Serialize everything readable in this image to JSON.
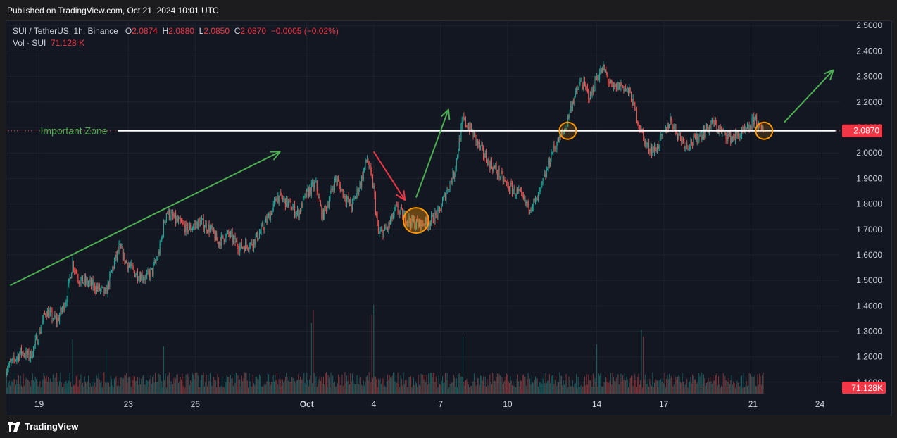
{
  "header": {
    "published": "Published on TradingView.com, Oct 21, 2024 10:01 UTC"
  },
  "legend": {
    "symbol": "SUI / TetherUS, 1h, Binance",
    "o_label": "O",
    "o_value": "2.0874",
    "h_label": "H",
    "h_value": "2.0880",
    "l_label": "L",
    "l_value": "2.0850",
    "c_label": "C",
    "c_value": "2.0870",
    "change": "−0.0005 (−0.02%)",
    "vol_label": "Vol · SUI",
    "vol_value": "71.128 K"
  },
  "footer": {
    "brand": "TradingView",
    "logo_icon": "tradingview-logo-icon"
  },
  "colors": {
    "background": "#131722",
    "up": "#26a69a",
    "down": "#ef5350",
    "annotation_green": "#4caf50",
    "annotation_red": "#f23645",
    "circle": "#ff9800",
    "price_tag": "#f23645"
  },
  "chart_data": {
    "type": "candlestick",
    "title": "",
    "ylim": [
      1.05,
      2.52
    ],
    "y_ticks": [
      "2.5000",
      "2.4000",
      "2.3000",
      "2.2000",
      "2.1000",
      "2.0000",
      "1.9000",
      "1.8000",
      "1.7000",
      "1.6000",
      "1.5000",
      "1.4000",
      "1.3000",
      "1.2000",
      "1.1000"
    ],
    "y_tick_values": [
      2.5,
      2.4,
      2.3,
      2.2,
      2.1,
      2.0,
      1.9,
      1.8,
      1.7,
      1.6,
      1.5,
      1.4,
      1.3,
      1.2,
      1.1
    ],
    "x_ticks": [
      {
        "label": "19",
        "day": 0
      },
      {
        "label": "23",
        "day": 4
      },
      {
        "label": "26",
        "day": 7
      },
      {
        "label": "Oct",
        "day": 12,
        "bold": true
      },
      {
        "label": "4",
        "day": 15
      },
      {
        "label": "7",
        "day": 18
      },
      {
        "label": "10",
        "day": 21
      },
      {
        "label": "14",
        "day": 25
      },
      {
        "label": "17",
        "day": 28
      },
      {
        "label": "21",
        "day": 32
      },
      {
        "label": "24",
        "day": 35
      }
    ],
    "x_range_days": [
      -1.5,
      35.9
    ],
    "last_price": {
      "value": 2.087,
      "label": "2.0870"
    },
    "last_volume": {
      "label": "71.128K"
    },
    "price_path": [
      [
        -1.5,
        1.15
      ],
      [
        -1.2,
        1.18
      ],
      [
        -0.8,
        1.22
      ],
      [
        -0.4,
        1.2
      ],
      [
        0.0,
        1.29
      ],
      [
        0.3,
        1.38
      ],
      [
        0.8,
        1.34
      ],
      [
        1.2,
        1.42
      ],
      [
        1.5,
        1.57
      ],
      [
        1.8,
        1.5
      ],
      [
        2.2,
        1.49
      ],
      [
        2.6,
        1.47
      ],
      [
        3.0,
        1.45
      ],
      [
        3.3,
        1.55
      ],
      [
        3.6,
        1.63
      ],
      [
        3.9,
        1.57
      ],
      [
        4.3,
        1.53
      ],
      [
        4.8,
        1.51
      ],
      [
        5.1,
        1.54
      ],
      [
        5.4,
        1.62
      ],
      [
        5.7,
        1.77
      ],
      [
        6.2,
        1.73
      ],
      [
        6.7,
        1.7
      ],
      [
        7.2,
        1.73
      ],
      [
        7.7,
        1.7
      ],
      [
        8.0,
        1.65
      ],
      [
        8.5,
        1.68
      ],
      [
        9.0,
        1.63
      ],
      [
        9.6,
        1.65
      ],
      [
        10.0,
        1.7
      ],
      [
        10.3,
        1.75
      ],
      [
        10.7,
        1.83
      ],
      [
        11.2,
        1.8
      ],
      [
        11.6,
        1.76
      ],
      [
        12.0,
        1.84
      ],
      [
        12.4,
        1.88
      ],
      [
        12.7,
        1.75
      ],
      [
        13.0,
        1.82
      ],
      [
        13.3,
        1.9
      ],
      [
        13.7,
        1.83
      ],
      [
        14.0,
        1.79
      ],
      [
        14.4,
        1.88
      ],
      [
        14.7,
        1.98
      ],
      [
        15.0,
        1.86
      ],
      [
        15.2,
        1.68
      ],
      [
        15.6,
        1.7
      ],
      [
        16.0,
        1.78
      ],
      [
        16.5,
        1.74
      ],
      [
        17.0,
        1.72
      ],
      [
        17.5,
        1.73
      ],
      [
        17.9,
        1.76
      ],
      [
        18.3,
        1.86
      ],
      [
        18.6,
        1.92
      ],
      [
        19.0,
        2.13
      ],
      [
        19.3,
        2.1
      ],
      [
        19.7,
        2.03
      ],
      [
        20.1,
        1.97
      ],
      [
        20.6,
        1.92
      ],
      [
        21.0,
        1.87
      ],
      [
        21.5,
        1.84
      ],
      [
        21.9,
        1.79
      ],
      [
        22.3,
        1.81
      ],
      [
        22.7,
        1.91
      ],
      [
        23.0,
        2.01
      ],
      [
        23.3,
        2.05
      ],
      [
        23.6,
        2.1
      ],
      [
        23.9,
        2.2
      ],
      [
        24.3,
        2.28
      ],
      [
        24.7,
        2.22
      ],
      [
        25.0,
        2.3
      ],
      [
        25.3,
        2.33
      ],
      [
        25.7,
        2.25
      ],
      [
        26.1,
        2.27
      ],
      [
        26.5,
        2.23
      ],
      [
        26.9,
        2.11
      ],
      [
        27.2,
        2.03
      ],
      [
        27.6,
        2.01
      ],
      [
        28.0,
        2.07
      ],
      [
        28.3,
        2.13
      ],
      [
        28.6,
        2.08
      ],
      [
        29.0,
        2.03
      ],
      [
        29.4,
        2.05
      ],
      [
        29.8,
        2.08
      ],
      [
        30.2,
        2.12
      ],
      [
        30.6,
        2.08
      ],
      [
        31.0,
        2.06
      ],
      [
        31.4,
        2.07
      ],
      [
        31.8,
        2.09
      ],
      [
        32.1,
        2.14
      ],
      [
        32.3,
        2.09
      ],
      [
        32.5,
        2.087
      ]
    ],
    "volume_scale": {
      "max": 1.0
    },
    "volume_spikes": [
      {
        "day": 1.5,
        "value": 0.55
      },
      {
        "day": 3.0,
        "value": 0.45
      },
      {
        "day": 5.6,
        "value": 0.48
      },
      {
        "day": 12.2,
        "value": 0.72
      },
      {
        "day": 12.3,
        "value": 0.85
      },
      {
        "day": 14.9,
        "value": 0.8
      },
      {
        "day": 15.0,
        "value": 0.9
      },
      {
        "day": 19.0,
        "value": 0.58
      },
      {
        "day": 25.0,
        "value": 0.5
      },
      {
        "day": 27.0,
        "value": 0.65
      },
      {
        "day": 27.1,
        "value": 0.58
      },
      {
        "day": 32.2,
        "value": 0.2
      }
    ],
    "annotations": {
      "zone": {
        "label": "Important Zone",
        "price": 2.087,
        "start_day": -1.2,
        "end_day": 35.7
      },
      "arrows": [
        {
          "color": "green",
          "from": [
            -1.3,
            1.48
          ],
          "to": [
            10.8,
            2.005
          ]
        },
        {
          "color": "red",
          "from": [
            15.0,
            2.005
          ],
          "to": [
            16.4,
            1.815
          ]
        },
        {
          "color": "green",
          "from": [
            16.9,
            1.825
          ],
          "to": [
            18.35,
            2.17
          ]
        },
        {
          "color": "green",
          "from": [
            33.4,
            2.12
          ],
          "to": [
            35.6,
            2.325
          ]
        }
      ],
      "circles": [
        {
          "day": 16.9,
          "price": 1.735,
          "large": true
        },
        {
          "day": 23.7,
          "price": 2.087,
          "large": false
        },
        {
          "day": 32.5,
          "price": 2.087,
          "large": false
        }
      ]
    }
  }
}
